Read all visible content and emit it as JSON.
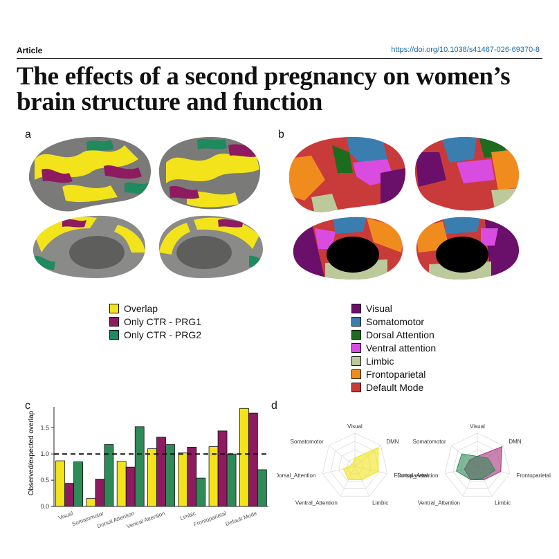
{
  "header": {
    "article_label": "Article",
    "doi": "https://doi.org/10.1038/s41467-026-69370-8"
  },
  "title": "The effects of a second pregnancy on women’s brain structure and function",
  "panels": {
    "a": {
      "letter": "a",
      "legend": [
        {
          "label": "Overlap",
          "color": "#f2e31b"
        },
        {
          "label": "Only CTR - PRG1",
          "color": "#8e1a60"
        },
        {
          "label": "Only CTR - PRG2",
          "color": "#1e8a5e"
        }
      ]
    },
    "b": {
      "letter": "b",
      "legend": [
        {
          "label": "Visual",
          "color": "#6a0f6a"
        },
        {
          "label": "Somatomotor",
          "color": "#3a7eb0"
        },
        {
          "label": "Dorsal Attention",
          "color": "#1d6b1d"
        },
        {
          "label": "Ventral attention",
          "color": "#d94ce0"
        },
        {
          "label": "Limbic",
          "color": "#bcc99a"
        },
        {
          "label": "Frontoparietal",
          "color": "#f08c1e"
        },
        {
          "label": "Default Mode",
          "color": "#c93a3a"
        }
      ]
    },
    "c": {
      "letter": "c"
    },
    "d": {
      "letter": "d"
    }
  },
  "chart_data": [
    {
      "type": "bar",
      "panel": "c",
      "ylabel": "Observed/expected overlap",
      "ylim": [
        0,
        1.9
      ],
      "yticks": [
        "0.0",
        "0.5",
        "1.0",
        "1.5"
      ],
      "reference_line": 1.0,
      "categories": [
        "Visual",
        "Somatomotor",
        "Dorsal Attention",
        "Ventral Attention",
        "Limbic",
        "Frontoparietal",
        "Default Mode"
      ],
      "series": [
        {
          "color": "#f2e31b",
          "values": [
            0.87,
            0.15,
            0.86,
            1.1,
            1.02,
            1.14,
            1.87
          ]
        },
        {
          "color": "#8e1a60",
          "values": [
            0.44,
            0.52,
            0.75,
            1.32,
            1.13,
            1.44,
            1.78
          ]
        },
        {
          "color": "#2e8b57",
          "values": [
            0.85,
            1.18,
            1.52,
            1.18,
            0.54,
            1.0,
            0.7
          ]
        }
      ]
    },
    {
      "type": "radar",
      "panel": "d",
      "axes": [
        "Visual",
        "DMN",
        "Frontoparietal",
        "Limbic",
        "Ventral_Attention",
        "Dorsal_Attention",
        "Somatomotor"
      ],
      "plots": [
        {
          "series": [
            {
              "color": "#f2e31b",
              "values": [
                0.25,
                0.9,
                0.72,
                0.45,
                0.45,
                0.35,
                0.1
              ]
            }
          ]
        },
        {
          "series": [
            {
              "color": "#a8327f",
              "values": [
                0.3,
                0.95,
                0.72,
                0.45,
                0.45,
                0.4,
                0.3
              ]
            },
            {
              "color": "#2e8b57",
              "values": [
                0.3,
                0.4,
                0.55,
                0.4,
                0.45,
                0.65,
                0.6
              ]
            }
          ]
        }
      ]
    }
  ]
}
